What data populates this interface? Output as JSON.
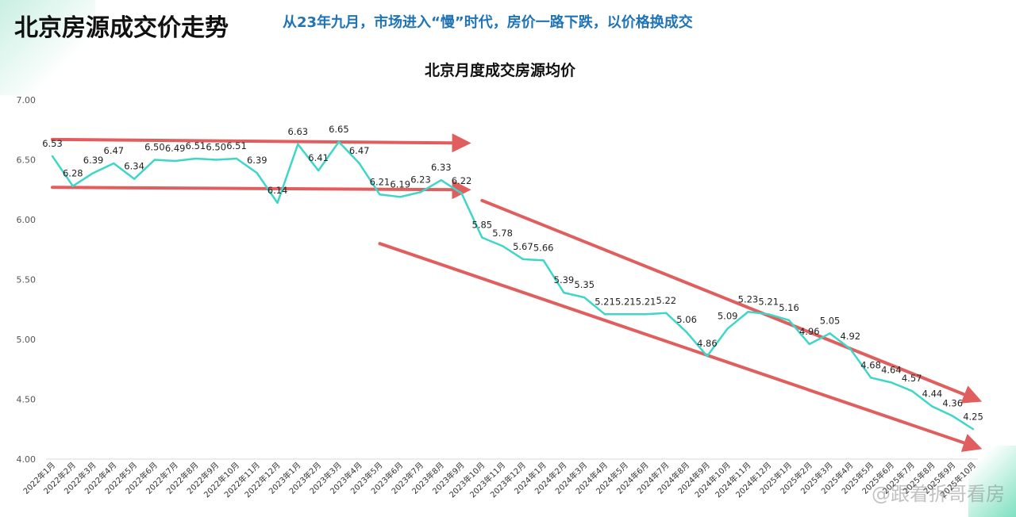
{
  "header": {
    "title": "北京房源成交价走势",
    "subtitle": "从23年九月，市场进入“慢”时代，房价一路下跌，以价格换成交"
  },
  "watermark": "@跟着拆哥看房",
  "colors": {
    "line": "#3ed6c8",
    "arrow": "#e05656",
    "subtitle": "#1f73b7"
  },
  "chart_data": {
    "type": "line",
    "title": "北京月度成交房源均价",
    "xlabel": "",
    "ylabel": "",
    "ylim": [
      4.0,
      7.0
    ],
    "yticks": [
      "4.00",
      "4.50",
      "5.00",
      "5.50",
      "6.00",
      "6.50",
      "7.00"
    ],
    "grid": false,
    "categories": [
      "2022年1月",
      "2022年2月",
      "2022年3月",
      "2022年4月",
      "2022年5月",
      "2022年6月",
      "2022年7月",
      "2022年8月",
      "2022年9月",
      "2022年10月",
      "2022年11月",
      "2022年12月",
      "2023年1月",
      "2023年2月",
      "2023年3月",
      "2023年4月",
      "2023年5月",
      "2023年6月",
      "2023年7月",
      "2023年8月",
      "2023年9月",
      "2023年10月",
      "2023年11月",
      "2023年12月",
      "2024年1月",
      "2024年2月",
      "2024年3月",
      "2024年4月",
      "2024年5月",
      "2024年6月",
      "2024年7月",
      "2024年8月",
      "2024年9月",
      "2024年10月",
      "2024年11月",
      "2024年12月",
      "2025年1月",
      "2025年2月",
      "2025年3月",
      "2025年4月",
      "2025年5月",
      "2025年6月",
      "2025年7月",
      "2025年8月",
      "2025年9月",
      "2025年10月"
    ],
    "series": [
      {
        "values": [
          6.53,
          6.28,
          6.39,
          6.47,
          6.34,
          6.5,
          6.49,
          6.51,
          6.5,
          6.51,
          6.39,
          6.14,
          6.63,
          6.41,
          6.65,
          6.47,
          6.21,
          6.19,
          6.23,
          6.33,
          6.22,
          5.85,
          5.78,
          5.67,
          5.66,
          5.39,
          5.35,
          5.21,
          5.21,
          5.21,
          5.22,
          5.06,
          4.86,
          5.09,
          5.23,
          5.21,
          5.16,
          4.96,
          5.05,
          4.92,
          4.68,
          4.64,
          4.57,
          4.44,
          4.36,
          4.25
        ],
        "labels": [
          "6.53",
          "6.28",
          "6.39",
          "6.47",
          "6.34",
          "6.50",
          "6.49",
          "6.51",
          "6.50",
          "6.51",
          "6.39",
          "6.14",
          "6.63",
          "6.41",
          "6.65",
          "6.47",
          "6.21",
          "6.19",
          "6.23",
          "6.33",
          "6.22",
          "5.85",
          "5.78",
          "5.67",
          "5.66",
          "5.39",
          "5.35",
          "5.21",
          "5.21",
          "5.21",
          "5.22",
          "5.06",
          "4.86",
          "5.09",
          "5.23",
          "5.21",
          "5.16",
          "4.96",
          "5.05",
          "4.92",
          "4.68",
          "4.64",
          "4.57",
          "4.44",
          "4.36",
          "4.25"
        ]
      }
    ],
    "trend_arrows": [
      {
        "from": [
          "2022年1月",
          6.67
        ],
        "to": [
          "2023年9月",
          6.64
        ]
      },
      {
        "from": [
          "2022年1月",
          6.27
        ],
        "to": [
          "2023年9月",
          6.25
        ]
      },
      {
        "from": [
          "2023年10月",
          6.16
        ],
        "to": [
          "2025年10月",
          4.51
        ]
      },
      {
        "from": [
          "2023年5月",
          5.8
        ],
        "to": [
          "2025年10月",
          4.11
        ]
      }
    ]
  }
}
